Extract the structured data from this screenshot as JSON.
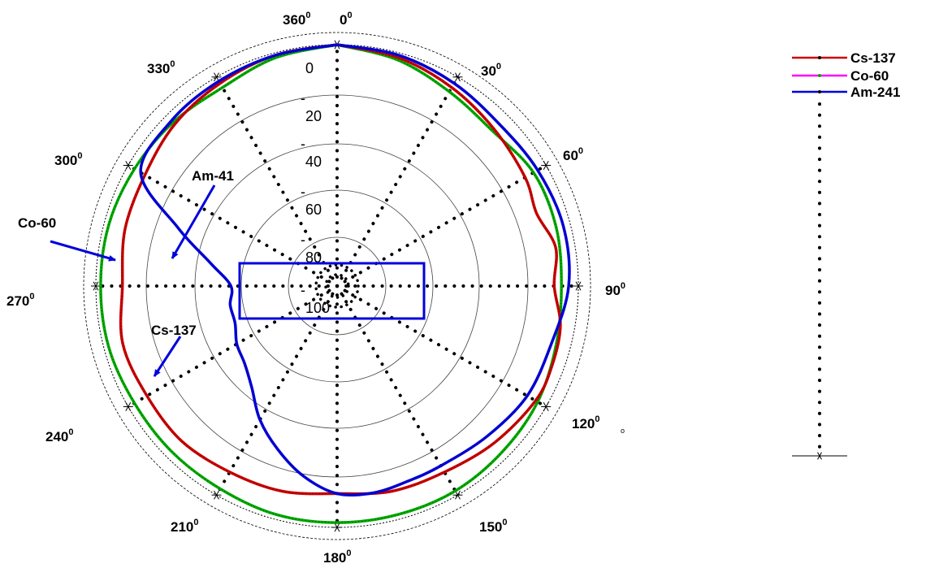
{
  "chart_data": {
    "type": "polar-line",
    "angle_unit": "deg",
    "angle_direction": "clockwise",
    "angle_zero": "top",
    "radial_range": [
      0,
      -100
    ],
    "radial_ticks": [
      "0",
      "-20",
      "-40",
      "-60",
      "-80",
      "-100"
    ],
    "angle_labels": [
      {
        "angle": 0,
        "text": "0",
        "sup": "0"
      },
      {
        "angle": 30,
        "text": "30",
        "sup": "0"
      },
      {
        "angle": 60,
        "text": "60",
        "sup": "0"
      },
      {
        "angle": 90,
        "text": "90",
        "sup": "0"
      },
      {
        "angle": 120,
        "text": "120",
        "sup": "0"
      },
      {
        "angle": 150,
        "text": "150",
        "sup": "0"
      },
      {
        "angle": 180,
        "text": "180",
        "sup": "0"
      },
      {
        "angle": 210,
        "text": "210",
        "sup": "0"
      },
      {
        "angle": 240,
        "text": "240",
        "sup": "0"
      },
      {
        "angle": 270,
        "text": "270",
        "sup": "0"
      },
      {
        "angle": 300,
        "text": "300",
        "sup": "0"
      },
      {
        "angle": 330,
        "text": "330",
        "sup": "0"
      },
      {
        "angle": 360,
        "text": "360",
        "sup": "0"
      }
    ],
    "stray_mark": "o",
    "series": [
      {
        "name": "Cs-137",
        "color": "#cc0000",
        "angles": [
          0,
          15,
          30,
          45,
          60,
          70,
          80,
          90,
          100,
          110,
          120,
          135,
          150,
          165,
          180,
          195,
          210,
          225,
          240,
          255,
          270,
          285,
          300,
          315,
          330,
          345,
          360
        ],
        "values": [
          0,
          -2,
          -5,
          -8,
          -10,
          -12,
          -8,
          -10,
          -6,
          -5,
          -5,
          -8,
          -11,
          -12,
          -14,
          -12,
          -11,
          -9,
          -9,
          -8,
          -11,
          -9,
          -8,
          -5,
          -3,
          -1,
          0
        ]
      },
      {
        "name": "Co-60",
        "color": "#00aa00",
        "angles": [
          0,
          15,
          30,
          45,
          60,
          75,
          90,
          105,
          120,
          135,
          150,
          165,
          180,
          195,
          210,
          225,
          240,
          255,
          270,
          285,
          300,
          315,
          330,
          345,
          360
        ],
        "values": [
          0,
          -3,
          -7,
          -9,
          -6,
          -6,
          -7,
          -6,
          -4,
          -3,
          -2,
          -2,
          -2,
          -2,
          -3,
          -3,
          -3,
          -2,
          -2,
          -2,
          -3,
          -4,
          -5,
          -2,
          0
        ]
      },
      {
        "name": "Am-241",
        "color": "#0000dd",
        "angles": [
          0,
          15,
          30,
          45,
          60,
          75,
          90,
          105,
          120,
          135,
          150,
          160,
          170,
          180,
          190,
          200,
          210,
          220,
          230,
          240,
          250,
          260,
          270,
          280,
          290,
          300,
          315,
          330,
          345,
          360
        ],
        "values": [
          0,
          -1,
          -3,
          -5,
          -4,
          -3,
          -4,
          -8,
          -9,
          -12,
          -14,
          -14,
          -13,
          -14,
          -20,
          -28,
          -36,
          -45,
          -50,
          -52,
          -55,
          -55,
          -56,
          -47,
          -30,
          -6,
          -3,
          -2,
          -1,
          0
        ]
      }
    ],
    "legend": {
      "position": "right",
      "entries": [
        "Cs-137",
        "Co-60",
        "Am-241"
      ]
    },
    "annotations": [
      {
        "text": "Am-41",
        "target_series": "Am-241"
      },
      {
        "text": "Co-60",
        "target_series": "Co-60"
      },
      {
        "text": "Cs-137",
        "target_series": "Cs-137"
      }
    ],
    "highlight_box": {
      "color": "#0000dd"
    }
  }
}
